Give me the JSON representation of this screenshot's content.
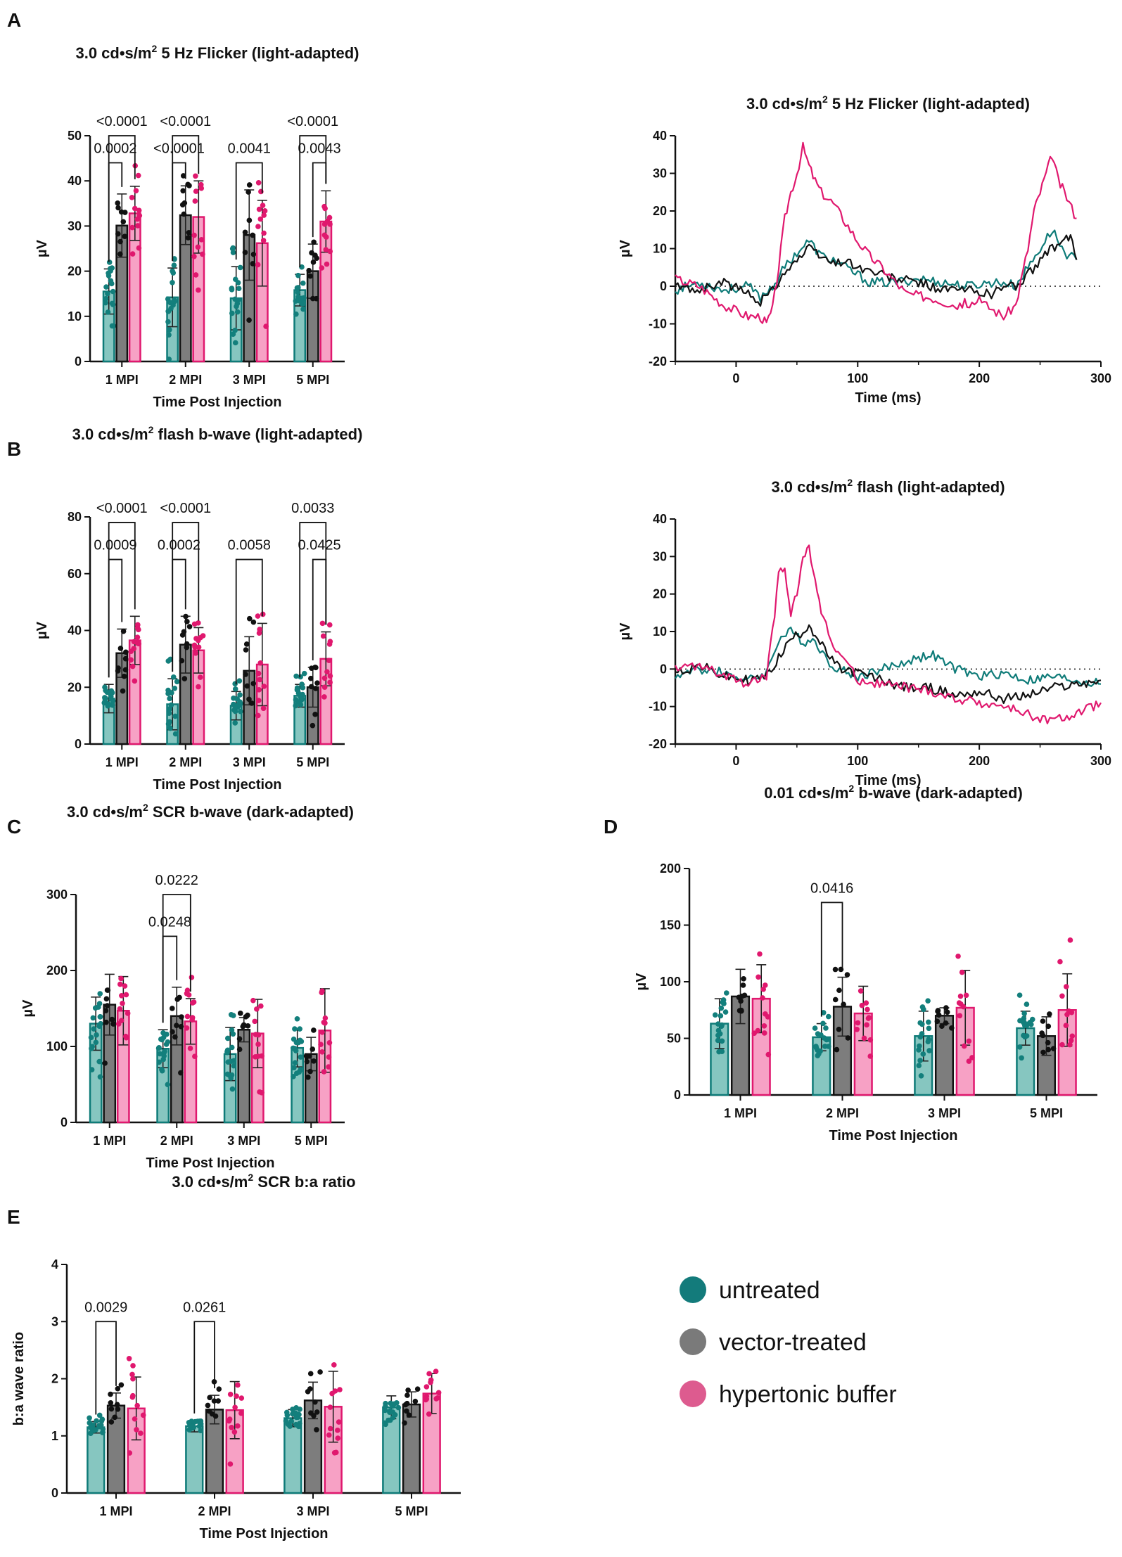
{
  "figure": {
    "panel_labels": [
      "A",
      "B",
      "C",
      "D",
      "E"
    ],
    "legend": [
      {
        "label": "untreated",
        "color": "#137b7b"
      },
      {
        "label": "vector-treated",
        "color": "#7a7a7a"
      },
      {
        "label": "hypertonic buffer",
        "color": "#dd5b8f"
      }
    ]
  },
  "colors": {
    "untreated_fill": "#86c6c0",
    "untreated_edge": "#0e7b78",
    "untreated_dot": "#137f7c",
    "vector_fill": "#7d7d7d",
    "vector_edge": "#111111",
    "vector_dot": "#111111",
    "hyper_fill": "#f7a1c5",
    "hyper_edge": "#e0186e",
    "hyper_dot": "#e0186e"
  },
  "chart_data": [
    {
      "id": "A-bar",
      "panel": "A",
      "type": "bar",
      "title_pre": "3.0 cd•s/m",
      "title_sup": "2",
      "title_post": " 5 Hz Flicker (light-adapted)",
      "xlabel": "Time Post Injection",
      "ylabel": "µV",
      "ylim": [
        0,
        50
      ],
      "yticks": [
        0,
        10,
        20,
        30,
        40,
        50
      ],
      "categories": [
        "1 MPI",
        "2 MPI",
        "3 MPI",
        "5 MPI"
      ],
      "series": [
        {
          "name": "untreated",
          "values": [
            15.5,
            14.2,
            14.0,
            15.8
          ],
          "sd": [
            5.0,
            6.5,
            7.0,
            3.5
          ]
        },
        {
          "name": "vector-treated",
          "values": [
            30.1,
            32.4,
            28.0,
            20.0
          ],
          "sd": [
            7.0,
            6.5,
            10.0,
            6.0
          ]
        },
        {
          "name": "hypertonic buffer",
          "values": [
            32.8,
            32.0,
            26.2,
            31.0
          ],
          "sd": [
            6.0,
            8.0,
            9.5,
            6.8
          ]
        }
      ],
      "comparisons": [
        {
          "category": 0,
          "from": 0,
          "to": 1,
          "p": "0.0002",
          "y": 44
        },
        {
          "category": 0,
          "from": 0,
          "to": 2,
          "p": "<0.0001",
          "y": 50
        },
        {
          "category": 1,
          "from": 0,
          "to": 1,
          "p": "<0.0001",
          "y": 44
        },
        {
          "category": 1,
          "from": 0,
          "to": 2,
          "p": "<0.0001",
          "y": 50
        },
        {
          "category": 2,
          "from": 0,
          "to": 2,
          "p": "0.0041",
          "y": 44
        },
        {
          "category": 3,
          "from": 1,
          "to": 2,
          "p": "0.0043",
          "y": 44
        },
        {
          "category": 3,
          "from": 0,
          "to": 2,
          "p": "<0.0001",
          "y": 50
        }
      ]
    },
    {
      "id": "A-trace",
      "panel": "A",
      "type": "line",
      "title_pre": "3.0 cd•s/m",
      "title_sup": "2",
      "title_post": " 5 Hz Flicker (light-adapted)",
      "xlabel": "Time (ms)",
      "ylabel": "µV",
      "xlim": [
        -50,
        300
      ],
      "ylim": [
        -20,
        40
      ],
      "xticks": [
        0,
        100,
        200,
        300
      ],
      "yticks": [
        -20,
        -10,
        0,
        10,
        20,
        30,
        40
      ],
      "series": [
        {
          "name": "untreated",
          "x": [
            -50,
            -30,
            -10,
            10,
            20,
            30,
            40,
            50,
            60,
            70,
            80,
            90,
            100,
            110,
            130,
            150,
            170,
            190,
            210,
            220,
            230,
            240,
            250,
            260,
            270,
            280
          ],
          "y": [
            -1,
            1,
            -1,
            0,
            -3,
            0,
            5,
            9,
            12,
            8,
            7,
            5,
            3,
            1,
            1,
            2,
            1,
            0,
            1,
            1,
            0,
            5,
            10,
            15,
            9,
            7
          ]
        },
        {
          "name": "vector-treated",
          "x": [
            -50,
            -30,
            -10,
            10,
            20,
            30,
            40,
            50,
            60,
            70,
            80,
            90,
            100,
            110,
            130,
            150,
            170,
            190,
            210,
            220,
            230,
            240,
            250,
            260,
            270,
            275,
            280
          ],
          "y": [
            0,
            -1,
            1,
            -2,
            -4,
            -1,
            4,
            7,
            10,
            8,
            6,
            7,
            5,
            4,
            2,
            1,
            -1,
            -1,
            -2,
            0,
            0,
            3,
            7,
            10,
            12,
            13,
            7
          ]
        },
        {
          "name": "hypertonic buffer",
          "x": [
            -50,
            -30,
            -10,
            10,
            20,
            25,
            30,
            35,
            40,
            45,
            50,
            55,
            60,
            65,
            70,
            80,
            90,
            100,
            110,
            120,
            140,
            160,
            180,
            200,
            220,
            230,
            240,
            245,
            250,
            255,
            260,
            265,
            270,
            280
          ],
          "y": [
            2,
            0,
            -5,
            -8,
            -8,
            -10,
            -6,
            5,
            18,
            25,
            30,
            37,
            32,
            28,
            25,
            22,
            17,
            12,
            8,
            5,
            -2,
            -3,
            -5,
            -4,
            -8,
            -5,
            10,
            20,
            25,
            30,
            35,
            28,
            25,
            18
          ]
        }
      ],
      "reference_line": 0
    },
    {
      "id": "B-bar",
      "panel": "B",
      "type": "bar",
      "title_pre": "3.0 cd•s/m",
      "title_sup": "2",
      "title_post": " flash b-wave (light-adapted)",
      "xlabel": "Time Post Injection",
      "ylabel": "µV",
      "ylim": [
        0,
        80
      ],
      "yticks": [
        0,
        20,
        40,
        60,
        80
      ],
      "categories": [
        "1 MPI",
        "2 MPI",
        "3 MPI",
        "5 MPI"
      ],
      "series": [
        {
          "name": "untreated",
          "values": [
            16.0,
            14.0,
            13.5,
            17.0
          ],
          "sd": [
            5.0,
            9.0,
            5.0,
            4.0
          ]
        },
        {
          "name": "vector-treated",
          "values": [
            32.0,
            35.0,
            25.8,
            20.0
          ],
          "sd": [
            8.5,
            10.0,
            12.0,
            7.0
          ]
        },
        {
          "name": "hypertonic buffer",
          "values": [
            36.5,
            33.0,
            28.0,
            30.0
          ],
          "sd": [
            8.5,
            8.0,
            14.5,
            9.5
          ]
        }
      ],
      "comparisons": [
        {
          "category": 0,
          "from": 0,
          "to": 1,
          "p": "0.0009",
          "y": 65
        },
        {
          "category": 0,
          "from": 0,
          "to": 2,
          "p": "<0.0001",
          "y": 78
        },
        {
          "category": 1,
          "from": 0,
          "to": 1,
          "p": "0.0002",
          "y": 65
        },
        {
          "category": 1,
          "from": 0,
          "to": 2,
          "p": "<0.0001",
          "y": 78
        },
        {
          "category": 2,
          "from": 0,
          "to": 2,
          "p": "0.0058",
          "y": 65
        },
        {
          "category": 3,
          "from": 1,
          "to": 2,
          "p": "0.0425",
          "y": 65
        },
        {
          "category": 3,
          "from": 0,
          "to": 2,
          "p": "0.0033",
          "y": 78
        }
      ]
    },
    {
      "id": "B-trace",
      "panel": "B",
      "type": "line",
      "title_pre": "3.0 cd•s/m",
      "title_sup": "2",
      "title_post": " flash (light-adapted)",
      "xlabel": "Time (ms)",
      "ylabel": "µV",
      "xlim": [
        -50,
        300
      ],
      "ylim": [
        -20,
        40
      ],
      "xticks": [
        0,
        100,
        200,
        300
      ],
      "yticks": [
        -20,
        -10,
        0,
        10,
        20,
        30,
        40
      ],
      "series": [
        {
          "name": "untreated",
          "x": [
            -50,
            -30,
            -10,
            10,
            25,
            35,
            45,
            55,
            65,
            75,
            85,
            100,
            120,
            140,
            160,
            180,
            200,
            220,
            240,
            260,
            280,
            300
          ],
          "y": [
            -2,
            0,
            -1,
            -3,
            -1,
            8,
            10,
            7,
            8,
            2,
            0,
            -2,
            0,
            2,
            4,
            0,
            -2,
            -1,
            -3,
            -2,
            -3,
            -4
          ]
        },
        {
          "name": "vector-treated",
          "x": [
            -50,
            -30,
            -10,
            10,
            25,
            35,
            45,
            55,
            60,
            65,
            75,
            85,
            100,
            120,
            140,
            160,
            180,
            200,
            220,
            240,
            260,
            280,
            300
          ],
          "y": [
            -1,
            1,
            -2,
            -3,
            -2,
            3,
            8,
            10,
            12,
            9,
            4,
            0,
            -1,
            -3,
            -5,
            -5,
            -7,
            -6,
            -8,
            -7,
            -5,
            -4,
            -3
          ]
        },
        {
          "name": "hypertonic buffer",
          "x": [
            -50,
            -30,
            -10,
            10,
            25,
            30,
            35,
            40,
            45,
            50,
            55,
            60,
            65,
            70,
            80,
            90,
            100,
            120,
            140,
            160,
            180,
            200,
            220,
            240,
            260,
            280,
            300
          ],
          "y": [
            0,
            1,
            -2,
            -4,
            -2,
            10,
            25,
            27,
            15,
            20,
            30,
            32,
            25,
            15,
            6,
            2,
            -3,
            -4,
            -5,
            -6,
            -8,
            -9,
            -10,
            -12,
            -14,
            -12,
            -9
          ]
        }
      ],
      "reference_line": 0
    },
    {
      "id": "C-bar",
      "panel": "C",
      "type": "bar",
      "title_pre": "3.0 cd•s/m",
      "title_sup": "2",
      "title_post": " SCR b-wave (dark-adapted)",
      "xlabel": "Time Post Injection",
      "ylabel": "µV",
      "ylim": [
        0,
        300
      ],
      "yticks": [
        0,
        100,
        200,
        300
      ],
      "categories": [
        "1 MPI",
        "2 MPI",
        "3 MPI",
        "5 MPI"
      ],
      "series": [
        {
          "name": "untreated",
          "values": [
            130,
            97,
            90,
            98
          ],
          "sd": [
            35,
            25,
            35,
            25
          ]
        },
        {
          "name": "vector-treated",
          "values": [
            155,
            140,
            122,
            90
          ],
          "sd": [
            40,
            38,
            16,
            22
          ]
        },
        {
          "name": "hypertonic buffer",
          "values": [
            147,
            133,
            117,
            121
          ],
          "sd": [
            45,
            30,
            45,
            55
          ]
        }
      ],
      "comparisons": [
        {
          "category": 1,
          "from": 0,
          "to": 1,
          "p": "0.0248",
          "y": 245
        },
        {
          "category": 1,
          "from": 0,
          "to": 2,
          "p": "0.0222",
          "y": 300
        }
      ]
    },
    {
      "id": "D-bar",
      "panel": "D",
      "type": "bar",
      "title_pre": "0.01 cd•s/m",
      "title_sup": "2",
      "title_post": " b-wave (dark-adapted)",
      "xlabel": "Time Post Injection",
      "ylabel": "µV",
      "ylim": [
        0,
        200
      ],
      "yticks": [
        0,
        50,
        100,
        150,
        200
      ],
      "categories": [
        "1 MPI",
        "2 MPI",
        "3 MPI",
        "5 MPI"
      ],
      "series": [
        {
          "name": "untreated",
          "values": [
            63,
            51,
            52,
            59
          ],
          "sd": [
            22,
            12,
            22,
            15
          ]
        },
        {
          "name": "vector-treated",
          "values": [
            87,
            78,
            70,
            52
          ],
          "sd": [
            24,
            26,
            7,
            17
          ]
        },
        {
          "name": "hypertonic buffer",
          "values": [
            85,
            72,
            77,
            75
          ],
          "sd": [
            30,
            24,
            33,
            32
          ]
        }
      ],
      "comparisons": [
        {
          "category": 1,
          "from": 0,
          "to": 1,
          "p": "0.0416",
          "y": 170
        }
      ]
    },
    {
      "id": "E-bar",
      "panel": "E",
      "type": "bar",
      "title_pre": "3.0 cd•s/m",
      "title_sup": "2",
      "title_post": " SCR b:a ratio",
      "xlabel": "Time Post Injection",
      "ylabel": "b:a wave ratio",
      "ylim": [
        0,
        4
      ],
      "yticks": [
        0,
        1,
        2,
        3,
        4
      ],
      "categories": [
        "1 MPI",
        "2 MPI",
        "3 MPI",
        "5 MPI"
      ],
      "series": [
        {
          "name": "untreated",
          "values": [
            1.15,
            1.17,
            1.31,
            1.5
          ],
          "sd": [
            0.1,
            0.1,
            0.15,
            0.2
          ]
        },
        {
          "name": "vector-treated",
          "values": [
            1.53,
            1.46,
            1.62,
            1.55
          ],
          "sd": [
            0.22,
            0.25,
            0.32,
            0.22
          ]
        },
        {
          "name": "hypertonic buffer",
          "values": [
            1.48,
            1.45,
            1.51,
            1.74
          ],
          "sd": [
            0.55,
            0.5,
            0.62,
            0.35
          ]
        }
      ],
      "comparisons": [
        {
          "category": 0,
          "from": 0,
          "to": 1,
          "p": "0.0029",
          "y": 3.0
        },
        {
          "category": 1,
          "from": 0,
          "to": 1,
          "p": "0.0261",
          "y": 3.0
        }
      ]
    }
  ]
}
